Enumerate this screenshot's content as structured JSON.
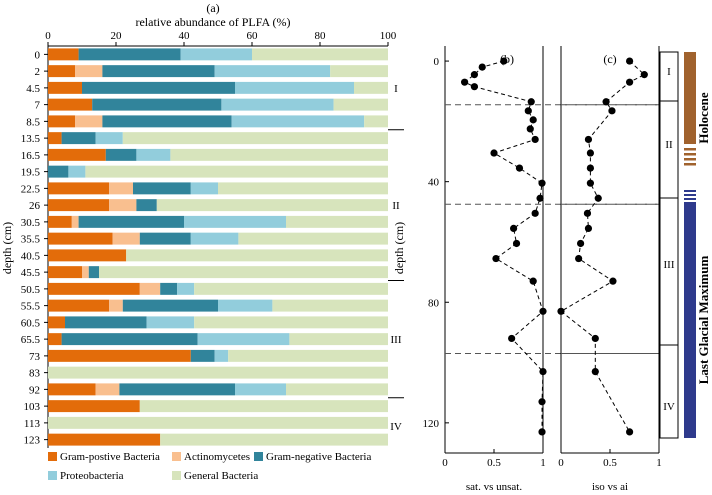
{
  "colors": {
    "gram_positive": "#E36C0A",
    "actinomycetes": "#F9BF8F",
    "gram_negative": "#31849B",
    "proteobacteria": "#92CDDC",
    "general": "#D7E4BC",
    "holocene": "#A0622D",
    "lgm": "#2E3A8C"
  },
  "chart_data": [
    {
      "type": "bar",
      "panel": "(a)",
      "title": "relative abundance of  PLFA (%)",
      "ylabel": "depth (cm)",
      "xlim": [
        0,
        100
      ],
      "xticks": [
        "0",
        "20",
        "40",
        "60",
        "80",
        "100"
      ],
      "categories": [
        "0",
        "2",
        "4.5",
        "7",
        "8.5",
        "13.5",
        "16.5",
        "19.5",
        "22.5",
        "26",
        "30.5",
        "35.5",
        "40.5",
        "45.5",
        "50.5",
        "55.5",
        "60.5",
        "65.5",
        "73",
        "83",
        "92",
        "103",
        "113",
        "123"
      ],
      "series": [
        {
          "name": "Gram-postive Bacteria",
          "values": [
            9,
            8,
            10,
            13,
            8,
            4,
            17,
            0,
            18,
            18,
            7,
            19,
            23,
            10,
            27,
            18,
            5,
            4,
            42,
            0,
            14,
            27,
            0,
            33
          ]
        },
        {
          "name": "Actinomycetes",
          "values": [
            0,
            8,
            0,
            0,
            8,
            0,
            0,
            0,
            7,
            8,
            2,
            8,
            0,
            2,
            6,
            4,
            0,
            0,
            0,
            0,
            7,
            0,
            0,
            0
          ]
        },
        {
          "name": "Gram-negative Bacteria",
          "values": [
            30,
            33,
            45,
            38,
            38,
            10,
            9,
            6,
            17,
            6,
            31,
            15,
            0,
            3,
            5,
            28,
            24,
            40,
            7,
            0,
            34,
            0,
            0,
            0
          ]
        },
        {
          "name": "Proteobacteria",
          "values": [
            21,
            34,
            35,
            33,
            39,
            8,
            10,
            5,
            8,
            0,
            30,
            14,
            0,
            0,
            5,
            16,
            14,
            27,
            4,
            0,
            15,
            0,
            0,
            0
          ]
        },
        {
          "name": "General Bacteria",
          "values": [
            40,
            17,
            10,
            16,
            7,
            78,
            64,
            89,
            50,
            68,
            30,
            44,
            77,
            85,
            57,
            34,
            57,
            29,
            47,
            100,
            30,
            73,
            100,
            67
          ]
        }
      ],
      "zones": [
        "I",
        "II",
        "III",
        "IV"
      ],
      "legend_position": "bottom"
    },
    {
      "type": "line",
      "panel": "(b)",
      "xlabel": "sat. vs unsat.",
      "ylabel": "depth (cm)",
      "xlim": [
        0,
        1
      ],
      "ylim": [
        130,
        -5
      ],
      "xticks": [
        "0",
        "0.5",
        "1"
      ],
      "yticks": [
        "0",
        "40",
        "80",
        "120"
      ],
      "y": [
        0,
        2,
        4.5,
        7,
        8.5,
        13.5,
        16.5,
        19.5,
        22.5,
        26,
        30.5,
        35.5,
        40.5,
        45.5,
        50.5,
        55.5,
        60.5,
        65.5,
        73,
        83,
        92,
        103,
        113,
        123
      ],
      "values": [
        0.6,
        0.38,
        0.3,
        0.2,
        0.3,
        0.88,
        0.85,
        0.9,
        0.87,
        0.92,
        0.5,
        0.76,
        0.99,
        0.97,
        0.92,
        0.7,
        0.73,
        0.52,
        0.9,
        1.0,
        0.68,
        1.0,
        0.99,
        0.99
      ],
      "zone_boundaries": [
        14.5,
        47.5,
        97
      ]
    },
    {
      "type": "line",
      "panel": "(c)",
      "xlabel": "iso vs ai",
      "xlim": [
        0,
        1
      ],
      "ylim": [
        130,
        -5
      ],
      "xticks": [
        "0",
        "0.5",
        "1"
      ],
      "y": [
        0,
        4.5,
        7,
        13.5,
        16.5,
        26,
        30.5,
        35.5,
        40.5,
        45.5,
        50.5,
        55.5,
        60.5,
        65.5,
        73,
        83,
        92,
        103,
        123
      ],
      "values": [
        0.7,
        0.85,
        0.7,
        0.46,
        0.52,
        0.28,
        0.3,
        0.3,
        0.3,
        0.38,
        0.27,
        0.28,
        0.2,
        0.18,
        0.53,
        0.0,
        0.35,
        0.35,
        0.7
      ],
      "zone_boundaries": [
        14.5,
        47.5,
        97
      ]
    }
  ],
  "strat": {
    "zones": [
      "I",
      "II",
      "III",
      "IV"
    ],
    "holocene_label": "Holocene",
    "lgm_label": "Last Glacial Maximum"
  }
}
